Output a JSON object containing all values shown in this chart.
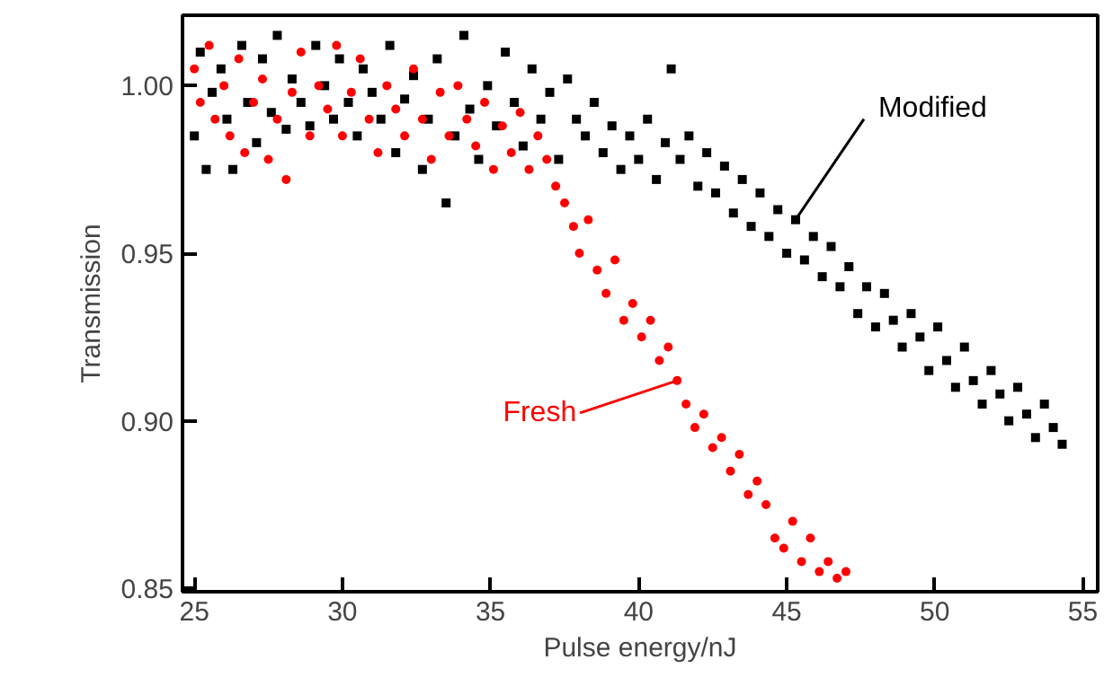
{
  "chart_data": {
    "type": "scatter",
    "xlabel": "Pulse energy/nJ",
    "ylabel": "Transmission",
    "xlim": [
      24.6,
      55.5
    ],
    "ylim": [
      0.849,
      1.021
    ],
    "xticks": [
      25,
      30,
      35,
      40,
      45,
      50,
      55
    ],
    "yticks": [
      0.85,
      {
        "value": 0.9,
        "label": "0.90"
      },
      0.95,
      {
        "value": 1.0,
        "label": "1.00"
      }
    ],
    "grid": false,
    "annotations": [
      {
        "text": "Modified",
        "x": 45.3,
        "y": 0.96
      },
      {
        "text": "Fresh",
        "x": 41.3,
        "y": 0.912
      }
    ],
    "series": [
      {
        "color": "#000000",
        "marker": "square",
        "x": [
          25.0,
          25.2,
          25.4,
          25.6,
          25.9,
          26.1,
          26.3,
          26.6,
          26.8,
          27.1,
          27.3,
          27.6,
          27.8,
          28.1,
          28.3,
          28.6,
          28.9,
          29.1,
          29.4,
          29.7,
          29.9,
          30.2,
          30.5,
          30.7,
          31.0,
          31.3,
          31.6,
          31.8,
          32.1,
          32.4,
          32.7,
          32.9,
          33.2,
          33.5,
          33.8,
          34.1,
          34.3,
          34.6,
          34.9,
          35.2,
          35.5,
          35.8,
          36.1,
          36.4,
          36.7,
          37.0,
          37.3,
          37.6,
          37.9,
          38.2,
          38.5,
          38.8,
          39.1,
          39.4,
          39.7,
          40.0,
          40.3,
          40.6,
          40.9,
          41.1,
          41.4,
          41.7,
          42.0,
          42.3,
          42.6,
          42.9,
          43.2,
          43.5,
          43.8,
          44.1,
          44.4,
          44.7,
          45.0,
          45.3,
          45.6,
          45.9,
          46.2,
          46.5,
          46.8,
          47.1,
          47.4,
          47.7,
          48.0,
          48.3,
          48.6,
          48.9,
          49.2,
          49.5,
          49.8,
          50.1,
          50.4,
          50.7,
          51.0,
          51.3,
          51.6,
          51.9,
          52.2,
          52.5,
          52.8,
          53.1,
          53.4,
          53.7,
          54.0,
          54.3
        ],
        "values": [
          0.985,
          1.01,
          0.975,
          0.998,
          1.005,
          0.99,
          0.975,
          1.012,
          0.995,
          0.983,
          1.008,
          0.992,
          1.015,
          0.987,
          1.002,
          0.995,
          0.988,
          1.012,
          1.0,
          0.99,
          1.008,
          0.995,
          0.985,
          1.005,
          0.998,
          0.99,
          1.012,
          0.98,
          0.996,
          1.003,
          0.975,
          0.99,
          1.008,
          0.965,
          0.985,
          1.015,
          0.993,
          0.978,
          1.0,
          0.988,
          1.01,
          0.995,
          0.982,
          1.005,
          0.99,
          0.998,
          0.978,
          1.002,
          0.99,
          0.985,
          0.995,
          0.98,
          0.988,
          0.975,
          0.985,
          0.978,
          0.99,
          0.972,
          0.983,
          1.005,
          0.978,
          0.985,
          0.97,
          0.98,
          0.968,
          0.976,
          0.962,
          0.972,
          0.958,
          0.968,
          0.955,
          0.963,
          0.95,
          0.96,
          0.948,
          0.955,
          0.943,
          0.952,
          0.94,
          0.946,
          0.932,
          0.94,
          0.928,
          0.938,
          0.93,
          0.922,
          0.932,
          0.925,
          0.915,
          0.928,
          0.918,
          0.91,
          0.922,
          0.912,
          0.905,
          0.915,
          0.908,
          0.9,
          0.91,
          0.902,
          0.895,
          0.905,
          0.898,
          0.893
        ]
      },
      {
        "color": "#ff0000",
        "marker": "circle",
        "x": [
          25.0,
          25.2,
          25.5,
          25.7,
          26.0,
          26.2,
          26.5,
          26.7,
          27.0,
          27.3,
          27.5,
          27.8,
          28.1,
          28.3,
          28.6,
          28.9,
          29.2,
          29.5,
          29.8,
          30.0,
          30.3,
          30.6,
          30.9,
          31.2,
          31.5,
          31.8,
          32.1,
          32.4,
          32.7,
          33.0,
          33.3,
          33.6,
          33.9,
          34.2,
          34.5,
          34.8,
          35.1,
          35.4,
          35.7,
          36.0,
          36.3,
          36.6,
          36.9,
          37.2,
          37.5,
          37.8,
          38.0,
          38.3,
          38.6,
          38.9,
          39.2,
          39.5,
          39.8,
          40.1,
          40.4,
          40.7,
          41.0,
          41.3,
          41.6,
          41.9,
          42.2,
          42.5,
          42.8,
          43.1,
          43.4,
          43.7,
          44.0,
          44.3,
          44.6,
          44.9,
          45.2,
          45.5,
          45.8,
          46.1,
          46.4,
          46.7,
          47.0
        ],
        "values": [
          1.005,
          0.995,
          1.012,
          0.99,
          1.0,
          0.985,
          1.008,
          0.98,
          0.995,
          1.002,
          0.978,
          0.99,
          0.972,
          0.998,
          1.01,
          0.985,
          1.0,
          0.993,
          1.012,
          0.985,
          0.998,
          1.008,
          0.99,
          0.98,
          1.0,
          0.993,
          0.985,
          1.005,
          0.99,
          0.978,
          0.998,
          0.985,
          1.0,
          0.99,
          0.982,
          0.995,
          0.975,
          0.988,
          0.98,
          0.992,
          0.975,
          0.985,
          0.978,
          0.97,
          0.965,
          0.958,
          0.95,
          0.96,
          0.945,
          0.938,
          0.948,
          0.93,
          0.935,
          0.925,
          0.93,
          0.918,
          0.922,
          0.912,
          0.905,
          0.898,
          0.902,
          0.892,
          0.895,
          0.885,
          0.89,
          0.878,
          0.882,
          0.875,
          0.865,
          0.862,
          0.87,
          0.858,
          0.865,
          0.855,
          0.858,
          0.853,
          0.855
        ]
      }
    ]
  }
}
